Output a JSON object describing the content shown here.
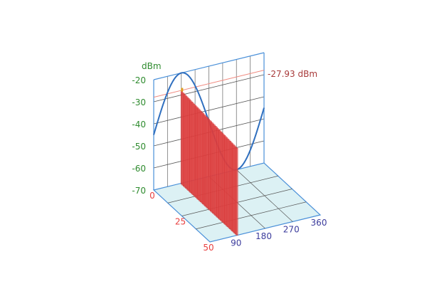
{
  "chart_data": {
    "type": "3d-bar-and-line",
    "zlabel": "dBm",
    "zlim": [
      -70,
      -20
    ],
    "z_ticks": [
      "-20",
      "-30",
      "-40",
      "-50",
      "-60",
      "-70"
    ],
    "depth_ticks": [
      "0",
      "25",
      "50"
    ],
    "depth_lim": [
      0,
      50
    ],
    "angle_ticks": [
      "90",
      "180",
      "270",
      "360"
    ],
    "angle_lim": [
      0,
      360
    ],
    "marker": {
      "value": -27.93,
      "label": "-27.93 dBm"
    },
    "sine_curve": {
      "offset": -45,
      "amplitude": 25,
      "period": 360
    },
    "bars_slice": {
      "angle": 90,
      "depths": [
        1,
        2,
        3,
        4,
        5,
        6,
        7,
        8,
        9,
        10,
        11,
        12,
        13,
        14,
        15,
        16,
        17,
        18,
        19,
        20,
        21,
        22,
        23,
        24,
        25,
        26,
        27,
        28,
        29,
        30,
        31,
        32,
        33,
        34,
        35,
        36,
        37,
        38,
        39,
        40,
        41,
        42,
        43,
        44,
        45,
        46,
        47,
        48,
        49,
        50
      ],
      "values_start": -27.93,
      "values_end": -30.5
    },
    "grid": true,
    "colors": {
      "z_axis": "#2e8b2e",
      "depth_axis": "#e84040",
      "angle_axis": "#3b3b9c",
      "marker": "#a83a3a",
      "curve": "#2f6fbf",
      "bars": "#e04545",
      "floor": "#dcf1f4",
      "frame": "#4a90d9"
    }
  }
}
